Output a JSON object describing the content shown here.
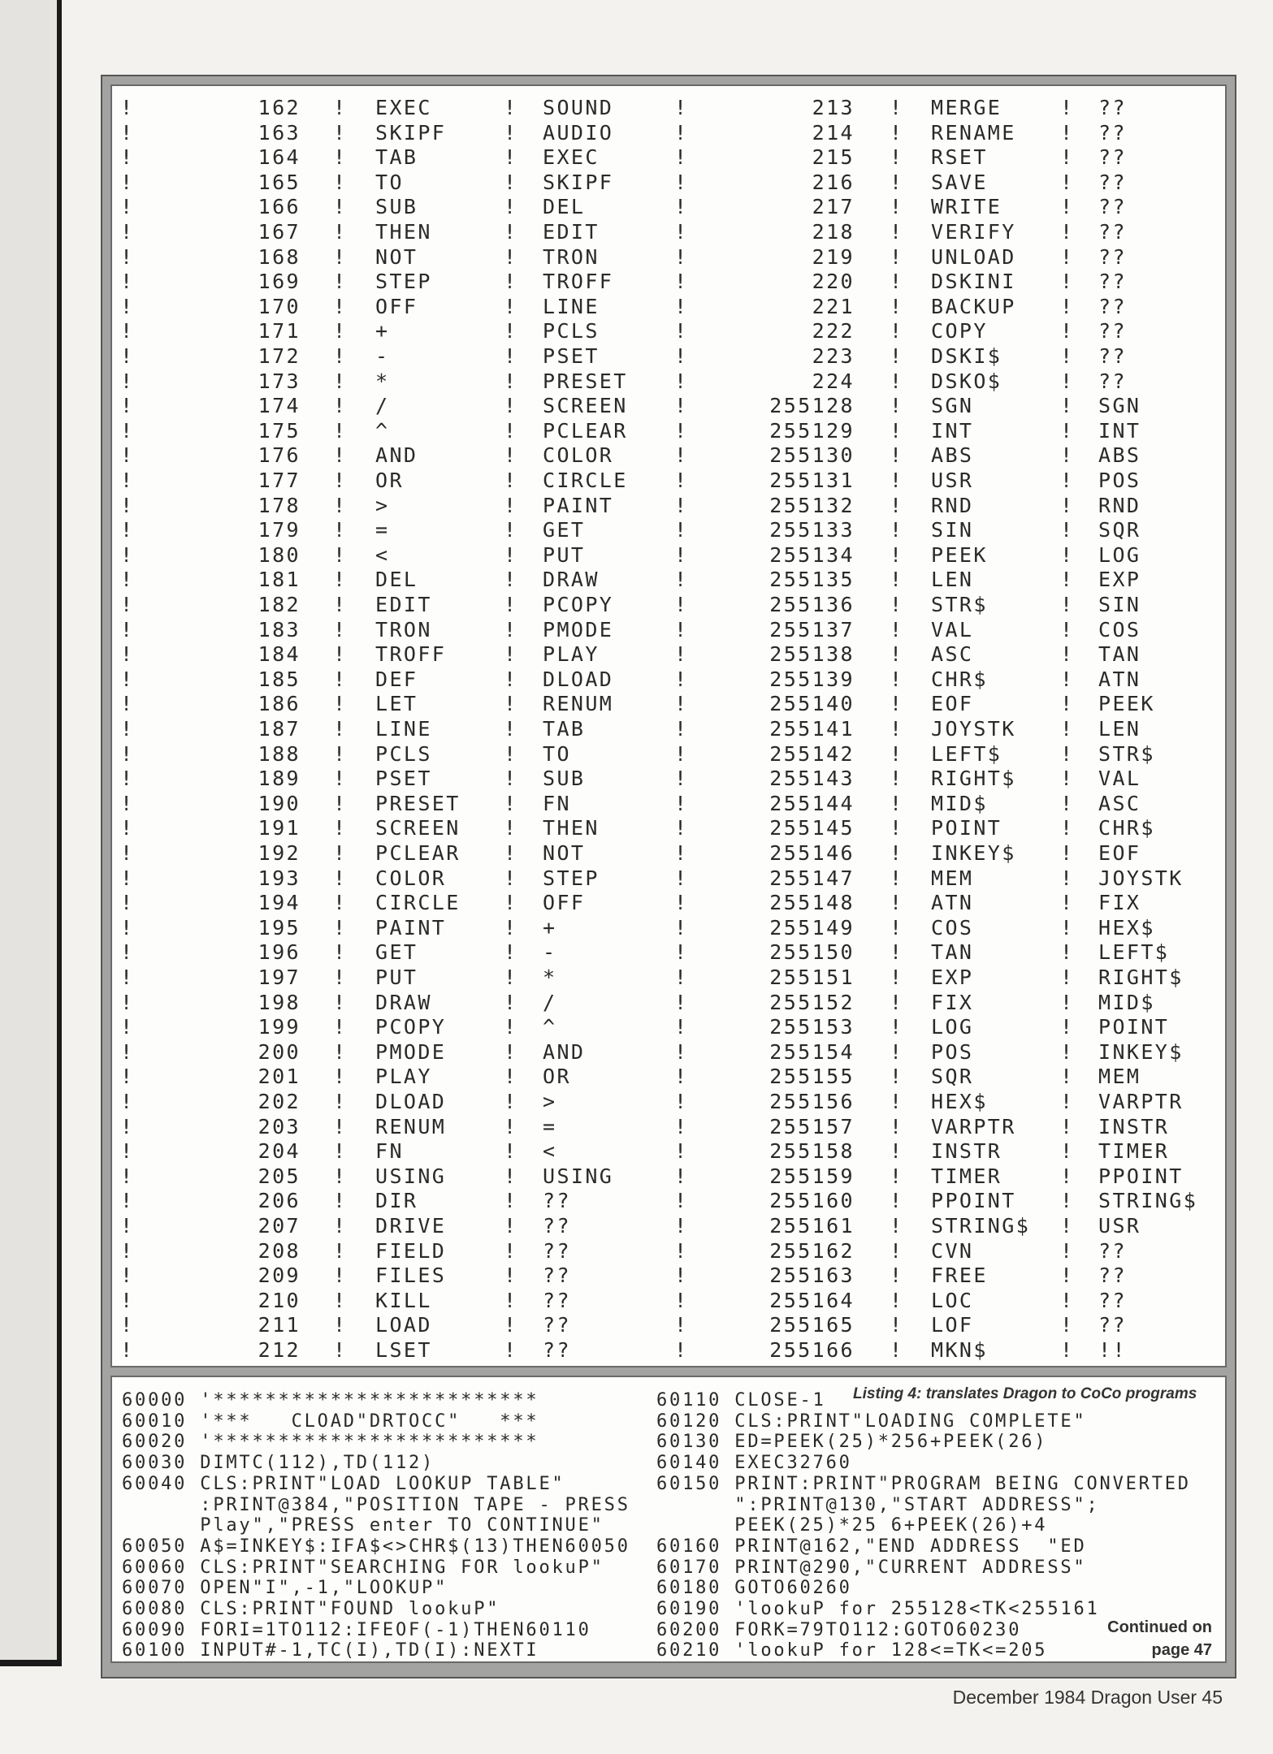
{
  "table": {
    "left_rows": [
      [
        "162",
        "EXEC",
        "SOUND"
      ],
      [
        "163",
        "SKIPF",
        "AUDIO"
      ],
      [
        "164",
        "TAB",
        "EXEC"
      ],
      [
        "165",
        "TO",
        "SKIPF"
      ],
      [
        "166",
        "SUB",
        "DEL"
      ],
      [
        "167",
        "THEN",
        "EDIT"
      ],
      [
        "168",
        "NOT",
        "TRON"
      ],
      [
        "169",
        "STEP",
        "TROFF"
      ],
      [
        "170",
        "OFF",
        "LINE"
      ],
      [
        "171",
        "+",
        "PCLS"
      ],
      [
        "172",
        "-",
        "PSET"
      ],
      [
        "173",
        "*",
        "PRESET"
      ],
      [
        "174",
        "/",
        "SCREEN"
      ],
      [
        "175",
        "^",
        "PCLEAR"
      ],
      [
        "176",
        "AND",
        "COLOR"
      ],
      [
        "177",
        "OR",
        "CIRCLE"
      ],
      [
        "178",
        ">",
        "PAINT"
      ],
      [
        "179",
        "=",
        "GET"
      ],
      [
        "180",
        "<",
        "PUT"
      ],
      [
        "181",
        "DEL",
        "DRAW"
      ],
      [
        "182",
        "EDIT",
        "PCOPY"
      ],
      [
        "183",
        "TRON",
        "PMODE"
      ],
      [
        "184",
        "TROFF",
        "PLAY"
      ],
      [
        "185",
        "DEF",
        "DLOAD"
      ],
      [
        "186",
        "LET",
        "RENUM"
      ],
      [
        "187",
        "LINE",
        "TAB"
      ],
      [
        "188",
        "PCLS",
        "TO"
      ],
      [
        "189",
        "PSET",
        "SUB"
      ],
      [
        "190",
        "PRESET",
        "FN"
      ],
      [
        "191",
        "SCREEN",
        "THEN"
      ],
      [
        "192",
        "PCLEAR",
        "NOT"
      ],
      [
        "193",
        "COLOR",
        "STEP"
      ],
      [
        "194",
        "CIRCLE",
        "OFF"
      ],
      [
        "195",
        "PAINT",
        "+"
      ],
      [
        "196",
        "GET",
        "-"
      ],
      [
        "197",
        "PUT",
        "*"
      ],
      [
        "198",
        "DRAW",
        "/"
      ],
      [
        "199",
        "PCOPY",
        "^"
      ],
      [
        "200",
        "PMODE",
        "AND"
      ],
      [
        "201",
        "PLAY",
        "OR"
      ],
      [
        "202",
        "DLOAD",
        ">"
      ],
      [
        "203",
        "RENUM",
        "="
      ],
      [
        "204",
        "FN",
        "<"
      ],
      [
        "205",
        "USING",
        "USING"
      ],
      [
        "206",
        "DIR",
        "??"
      ],
      [
        "207",
        "DRIVE",
        "??"
      ],
      [
        "208",
        "FIELD",
        "??"
      ],
      [
        "209",
        "FILES",
        "??"
      ],
      [
        "210",
        "KILL",
        "??"
      ],
      [
        "211",
        "LOAD",
        "??"
      ],
      [
        "212",
        "LSET",
        "??"
      ]
    ],
    "right_rows": [
      [
        "213",
        "MERGE",
        "??"
      ],
      [
        "214",
        "RENAME",
        "??"
      ],
      [
        "215",
        "RSET",
        "??"
      ],
      [
        "216",
        "SAVE",
        "??"
      ],
      [
        "217",
        "WRITE",
        "??"
      ],
      [
        "218",
        "VERIFY",
        "??"
      ],
      [
        "219",
        "UNLOAD",
        "??"
      ],
      [
        "220",
        "DSKINI",
        "??"
      ],
      [
        "221",
        "BACKUP",
        "??"
      ],
      [
        "222",
        "COPY",
        "??"
      ],
      [
        "223",
        "DSKI$",
        "??"
      ],
      [
        "224",
        "DSKO$",
        "??"
      ],
      [
        "255128",
        "SGN",
        "SGN"
      ],
      [
        "255129",
        "INT",
        "INT"
      ],
      [
        "255130",
        "ABS",
        "ABS"
      ],
      [
        "255131",
        "USR",
        "POS"
      ],
      [
        "255132",
        "RND",
        "RND"
      ],
      [
        "255133",
        "SIN",
        "SQR"
      ],
      [
        "255134",
        "PEEK",
        "LOG"
      ],
      [
        "255135",
        "LEN",
        "EXP"
      ],
      [
        "255136",
        "STR$",
        "SIN"
      ],
      [
        "255137",
        "VAL",
        "COS"
      ],
      [
        "255138",
        "ASC",
        "TAN"
      ],
      [
        "255139",
        "CHR$",
        "ATN"
      ],
      [
        "255140",
        "EOF",
        "PEEK"
      ],
      [
        "255141",
        "JOYSTK",
        "LEN"
      ],
      [
        "255142",
        "LEFT$",
        "STR$"
      ],
      [
        "255143",
        "RIGHT$",
        "VAL"
      ],
      [
        "255144",
        "MID$",
        "ASC"
      ],
      [
        "255145",
        "POINT",
        "CHR$"
      ],
      [
        "255146",
        "INKEY$",
        "EOF"
      ],
      [
        "255147",
        "MEM",
        "JOYSTK"
      ],
      [
        "255148",
        "ATN",
        "FIX"
      ],
      [
        "255149",
        "COS",
        "HEX$"
      ],
      [
        "255150",
        "TAN",
        "LEFT$"
      ],
      [
        "255151",
        "EXP",
        "RIGHT$"
      ],
      [
        "255152",
        "FIX",
        "MID$"
      ],
      [
        "255153",
        "LOG",
        "POINT"
      ],
      [
        "255154",
        "POS",
        "INKEY$"
      ],
      [
        "255155",
        "SQR",
        "MEM"
      ],
      [
        "255156",
        "HEX$",
        "VARPTR"
      ],
      [
        "255157",
        "VARPTR",
        "INSTR"
      ],
      [
        "255158",
        "INSTR",
        "TIMER"
      ],
      [
        "255159",
        "TIMER",
        "PPOINT"
      ],
      [
        "255160",
        "PPOINT",
        "STRING$"
      ],
      [
        "255161",
        "STRING$",
        "USR"
      ],
      [
        "255162",
        "CVN",
        "??"
      ],
      [
        "255163",
        "FREE",
        "??"
      ],
      [
        "255164",
        "LOC",
        "??"
      ],
      [
        "255165",
        "LOF",
        "??"
      ],
      [
        "255166",
        "MKN$",
        "!!"
      ]
    ],
    "separator": "!"
  },
  "listing": {
    "caption": "Listing 4: translates Dragon to CoCo programs",
    "left_lines": [
      "60000 '*************************",
      "60010 '***   CLOAD\"DRTOCC\"   ***",
      "60020 '*************************",
      "60030 DIMTC(112),TD(112)",
      "60040 CLS:PRINT\"LOAD LOOKUP TABLE\"",
      "      :PRINT@384,\"POSITION TAPE - PRESS",
      "      Play\",\"PRESS enter TO CONTINUE\"",
      "60050 A$=INKEY$:IFA$<>CHR$(13)THEN60050",
      "60060 CLS:PRINT\"SEARCHING FOR lookuP\"",
      "60070 OPEN\"I\",-1,\"LOOKUP\"",
      "60080 CLS:PRINT\"FOUND lookuP\"",
      "60090 FORI=1TO112:IFEOF(-1)THEN60110",
      "60100 INPUT#-1,TC(I),TD(I):NEXTI"
    ],
    "right_lines": [
      "60110 CLOSE-1",
      "60120 CLS:PRINT\"LOADING COMPLETE\"",
      "60130 ED=PEEK(25)*256+PEEK(26)",
      "60140 EXEC32760",
      "60150 PRINT:PRINT\"PROGRAM BEING CONVERTED",
      "      \":PRINT@130,\"START ADDRESS\";",
      "      PEEK(25)*25 6+PEEK(26)+4",
      "60160 PRINT@162,\"END ADDRESS  \"ED",
      "60170 PRINT@290,\"CURRENT ADDRESS\"",
      "60180 GOTO60260",
      "60190 'lookuP for 255128<TK<255161",
      "60200 FORK=79TO112:GOTO60230",
      "60210 'lookuP for 128<=TK<=205"
    ],
    "continued_line1": "Continued on",
    "continued_line2": "page 47"
  },
  "footer": "December 1984 Dragon User  45"
}
